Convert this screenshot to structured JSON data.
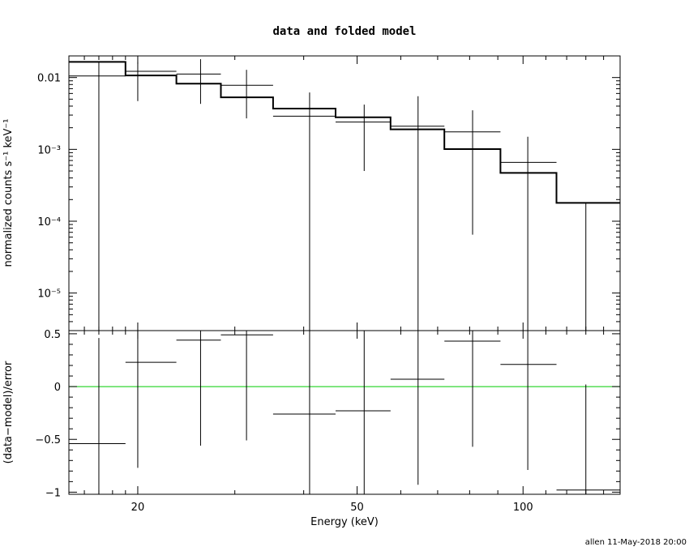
{
  "chart_data": [
    {
      "type": "line",
      "title": "data and folded model",
      "xlabel": "Energy (keV)",
      "ylabel": "normalized counts s⁻¹ keV⁻¹",
      "x_scale": "log",
      "y_scale": "log",
      "xlim": [
        15,
        150
      ],
      "ylim": [
        3e-06,
        0.02
      ],
      "y_tick_labels": [
        "0.01",
        "10⁻³",
        "10⁻⁴",
        "10⁻⁵"
      ],
      "y_tick_values": [
        0.01,
        0.001,
        0.0001,
        1e-05
      ],
      "series": [
        {
          "kind": "data",
          "points": [
            {
              "x": 17.0,
              "x_lo": 15.0,
              "x_hi": 19.0,
              "y": 0.0105,
              "y_lo": 3e-06,
              "y_hi": 0.0165
            },
            {
              "x": 20.0,
              "x_lo": 19.0,
              "x_hi": 23.5,
              "y": 0.0122,
              "y_lo": 0.0047,
              "y_hi": 0.0165
            },
            {
              "x": 26.0,
              "x_lo": 23.5,
              "x_hi": 28.3,
              "y": 0.0112,
              "y_lo": 0.0043,
              "y_hi": 0.018
            },
            {
              "x": 31.5,
              "x_lo": 28.3,
              "x_hi": 35.2,
              "y": 0.0078,
              "y_lo": 0.0027,
              "y_hi": 0.0128
            },
            {
              "x": 41.0,
              "x_lo": 35.2,
              "x_hi": 45.7,
              "y": 0.0029,
              "y_lo": 3e-06,
              "y_hi": 0.0062
            },
            {
              "x": 51.5,
              "x_lo": 45.7,
              "x_hi": 57.5,
              "y": 0.0024,
              "y_lo": 0.0005,
              "y_hi": 0.0042
            },
            {
              "x": 64.5,
              "x_lo": 57.5,
              "x_hi": 72.0,
              "y": 0.0021,
              "y_lo": 3e-06,
              "y_hi": 0.0055
            },
            {
              "x": 81.0,
              "x_lo": 72.0,
              "x_hi": 91.0,
              "y": 0.00175,
              "y_lo": 6.5e-05,
              "y_hi": 0.0035
            },
            {
              "x": 102.0,
              "x_lo": 91.0,
              "x_hi": 115.0,
              "y": 0.00066,
              "y_lo": 3e-06,
              "y_hi": 0.0015
            },
            {
              "x": 130.0,
              "x_lo": 115.0,
              "x_hi": 150.0,
              "y": 0.00018,
              "y_lo": 3e-06,
              "y_hi": 0.00018
            }
          ]
        },
        {
          "kind": "model",
          "steps": [
            {
              "x_lo": 15.0,
              "x_hi": 19.0,
              "y": 0.0165
            },
            {
              "x_lo": 19.0,
              "x_hi": 23.5,
              "y": 0.0107
            },
            {
              "x_lo": 23.5,
              "x_hi": 28.3,
              "y": 0.0082
            },
            {
              "x_lo": 28.3,
              "x_hi": 35.2,
              "y": 0.0053
            },
            {
              "x_lo": 35.2,
              "x_hi": 45.7,
              "y": 0.0037
            },
            {
              "x_lo": 45.7,
              "x_hi": 57.5,
              "y": 0.0028
            },
            {
              "x_lo": 57.5,
              "x_hi": 72.0,
              "y": 0.0019
            },
            {
              "x_lo": 72.0,
              "x_hi": 91.0,
              "y": 0.00101
            },
            {
              "x_lo": 91.0,
              "x_hi": 115.0,
              "y": 0.00047
            },
            {
              "x_lo": 115.0,
              "x_hi": 150.0,
              "y": 0.00018
            }
          ]
        }
      ]
    },
    {
      "type": "scatter",
      "xlabel": "Energy (keV)",
      "ylabel": "(data−model)/error",
      "x_scale": "log",
      "xlim": [
        15,
        150
      ],
      "ylim": [
        -1.02,
        0.53
      ],
      "x_tick_labels": [
        "20",
        "50",
        "100"
      ],
      "x_tick_values": [
        20,
        50,
        100
      ],
      "y_tick_labels": [
        "0.5",
        "0",
        "−0.5",
        "−1"
      ],
      "y_tick_values": [
        0.5,
        0,
        -0.5,
        -1
      ],
      "zero_line_color": "#00cc00",
      "points": [
        {
          "x": 17.0,
          "x_lo": 15.0,
          "x_hi": 19.0,
          "y": -0.54,
          "y_lo": -1.02,
          "y_hi": 0.46
        },
        {
          "x": 20.0,
          "x_lo": 19.0,
          "x_hi": 23.5,
          "y": 0.23,
          "y_lo": -0.77,
          "y_hi": 0.53
        },
        {
          "x": 26.0,
          "x_lo": 23.5,
          "x_hi": 28.3,
          "y": 0.44,
          "y_lo": -0.56,
          "y_hi": 0.53
        },
        {
          "x": 31.5,
          "x_lo": 28.3,
          "x_hi": 35.2,
          "y": 0.49,
          "y_lo": -0.51,
          "y_hi": 0.53
        },
        {
          "x": 41.0,
          "x_lo": 35.2,
          "x_hi": 45.7,
          "y": -0.26,
          "y_lo": -1.02,
          "y_hi": 0.53
        },
        {
          "x": 51.5,
          "x_lo": 45.7,
          "x_hi": 57.5,
          "y": -0.23,
          "y_lo": -1.02,
          "y_hi": 0.53
        },
        {
          "x": 64.5,
          "x_lo": 57.5,
          "x_hi": 72.0,
          "y": 0.07,
          "y_lo": -0.93,
          "y_hi": 0.53
        },
        {
          "x": 81.0,
          "x_lo": 72.0,
          "x_hi": 91.0,
          "y": 0.43,
          "y_lo": -0.57,
          "y_hi": 0.53
        },
        {
          "x": 102.0,
          "x_lo": 91.0,
          "x_hi": 115.0,
          "y": 0.21,
          "y_lo": -0.79,
          "y_hi": 0.53
        },
        {
          "x": 130.0,
          "x_lo": 115.0,
          "x_hi": 150.0,
          "y": -0.98,
          "y_lo": -1.02,
          "y_hi": 0.02
        }
      ]
    }
  ],
  "footer": "allen 11-May-2018 20:00"
}
